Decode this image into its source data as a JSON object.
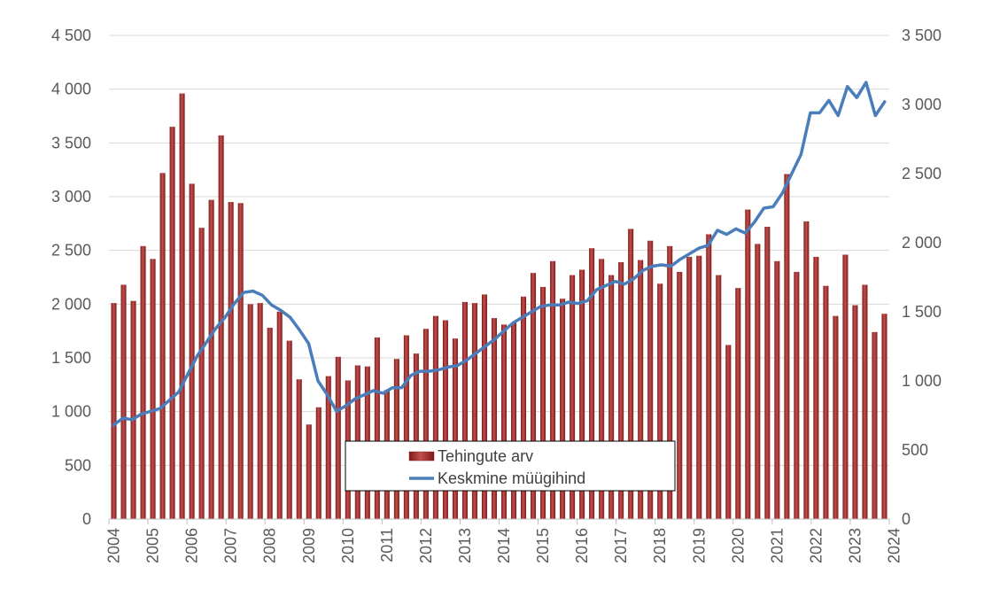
{
  "chart_data": {
    "type": "bar+line",
    "title": "",
    "xlabel": "",
    "ylabel": "",
    "y2label": "",
    "x_tick_labels": [
      "2004",
      "2005",
      "2006",
      "2007",
      "2008",
      "2009",
      "2010",
      "2011",
      "2012",
      "2013",
      "2014",
      "2015",
      "2016",
      "2017",
      "2018",
      "2019",
      "2020",
      "2021",
      "2022",
      "2023",
      "2024"
    ],
    "x_start": "2004 Q1",
    "y_left": {
      "range": [
        0,
        4500
      ],
      "ticks": [
        "0",
        "500",
        "1 000",
        "1 500",
        "2 000",
        "2 500",
        "3 000",
        "3 500",
        "4 000",
        "4 500"
      ]
    },
    "y_right": {
      "range": [
        0,
        3500
      ],
      "ticks": [
        "0",
        "500",
        "1 000",
        "1 500",
        "2 000",
        "2 500",
        "3 000",
        "3 500"
      ]
    },
    "grid": true,
    "legend_position": "bottom-center",
    "series": [
      {
        "name": "Tehingute arv",
        "kind": "bar",
        "axis": "left",
        "color": "#a52a2a",
        "values": [
          2010,
          2180,
          2030,
          2540,
          2420,
          3220,
          3650,
          3960,
          3120,
          2710,
          2970,
          3570,
          2950,
          2940,
          2000,
          2010,
          1780,
          1930,
          1660,
          1300,
          880,
          1040,
          1330,
          1510,
          1290,
          1430,
          1420,
          1690,
          1200,
          1490,
          1710,
          1540,
          1770,
          1890,
          1850,
          1680,
          2020,
          2010,
          2090,
          1870,
          1810,
          1830,
          2070,
          2290,
          2160,
          2400,
          2050,
          2270,
          2320,
          2520,
          2420,
          2270,
          2390,
          2700,
          2410,
          2590,
          2190,
          2540,
          2300,
          2440,
          2450,
          2650,
          2270,
          1620,
          2150,
          2880,
          2560,
          2720,
          2400,
          3210,
          2300,
          2770,
          2440,
          2170,
          1890,
          2460,
          1990,
          2180,
          1740,
          1910
        ]
      },
      {
        "name": "Keskmine müügihind",
        "kind": "line",
        "axis": "right",
        "color": "#4a7ebb",
        "values": [
          680,
          730,
          720,
          760,
          780,
          800,
          860,
          920,
          1050,
          1180,
          1280,
          1380,
          1460,
          1560,
          1640,
          1650,
          1620,
          1550,
          1510,
          1460,
          1370,
          1270,
          1000,
          900,
          780,
          820,
          870,
          900,
          930,
          910,
          950,
          950,
          1040,
          1070,
          1070,
          1080,
          1100,
          1110,
          1150,
          1200,
          1250,
          1300,
          1360,
          1420,
          1460,
          1500,
          1540,
          1550,
          1550,
          1570,
          1560,
          1580,
          1660,
          1690,
          1720,
          1700,
          1740,
          1800,
          1830,
          1840,
          1830,
          1880,
          1920,
          1960,
          1980,
          2090,
          2060,
          2100,
          2070,
          2150,
          2250,
          2260,
          2360,
          2500,
          2640,
          2940,
          2940,
          3030,
          2920,
          3130,
          3050,
          3160,
          2920,
          3020
        ]
      }
    ]
  }
}
